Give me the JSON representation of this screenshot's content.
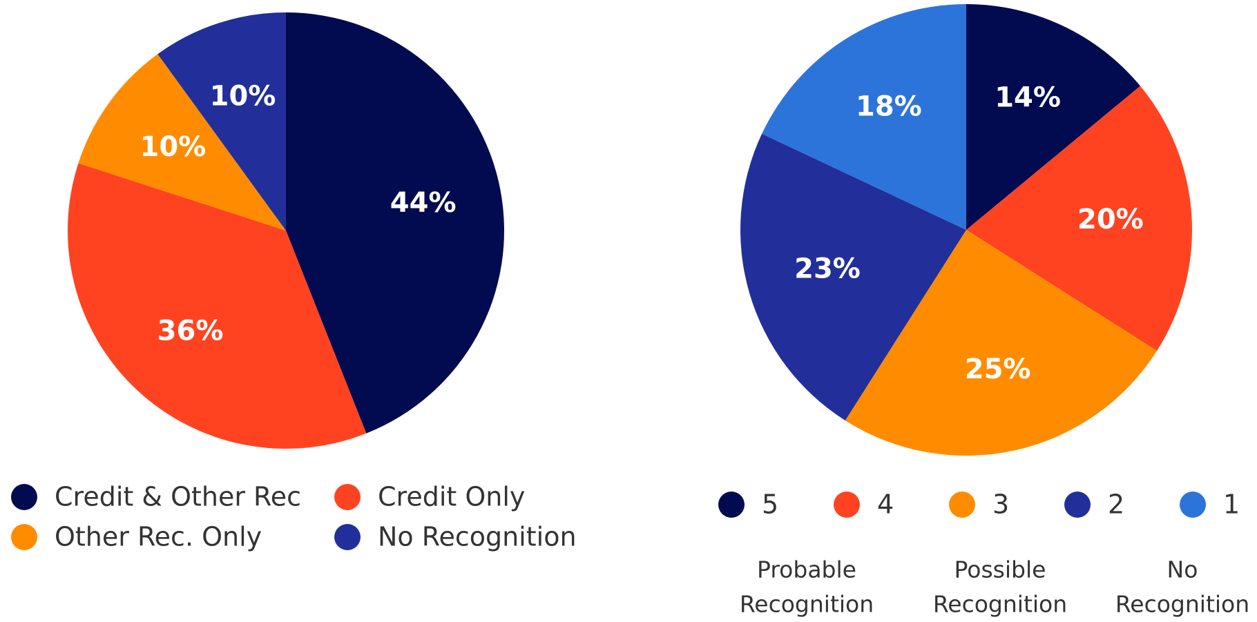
{
  "chart_data": [
    {
      "type": "pie",
      "categories": [
        "Credit & Other Rec",
        "Credit Only",
        "Other Rec. Only",
        "No Recognition"
      ],
      "values": [
        44,
        36,
        10,
        10
      ],
      "value_labels": [
        "44%",
        "36%",
        "10%",
        "10%"
      ],
      "colors": [
        "#020b4f",
        "#ff4321",
        "#ff8c00",
        "#222f9a"
      ]
    },
    {
      "type": "pie",
      "categories": [
        "5",
        "4",
        "3",
        "2",
        "1"
      ],
      "values": [
        14,
        20,
        25,
        23,
        18
      ],
      "value_labels": [
        "14%",
        "20%",
        "25%",
        "23%",
        "18%"
      ],
      "colors": [
        "#020b4f",
        "#ff4321",
        "#ff8c00",
        "#222f9a",
        "#2c74d9"
      ],
      "annotations": [
        [
          "Probable",
          "Recognition"
        ],
        [
          "Possible",
          "Recognition"
        ],
        [
          "No",
          "Recognition"
        ]
      ]
    }
  ]
}
